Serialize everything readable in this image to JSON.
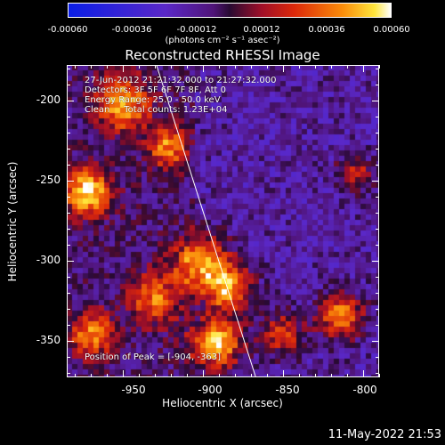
{
  "colorbar": {
    "ticks": [
      "-0.00060",
      "-0.00036",
      "-0.00012",
      "0.00012",
      "0.00036",
      "0.00060"
    ],
    "units": "(photons cm⁻² s⁻¹ asec⁻²)"
  },
  "title": "Reconstructed RHESSI Image",
  "annotation": {
    "time_range": "27-Jun-2012 21:21:32.000 to 21:27:32.000",
    "detectors": "Detectors: 3F 5F 6F 7F 8F, Att 0",
    "energy": "Energy Range: 25.0 - 50.0 keV",
    "method": "Clean     Total counts: 1.23E+04",
    "peak": "Position of Peak = [-904, -363]"
  },
  "axes": {
    "xlabel": "Heliocentric X (arcsec)",
    "ylabel": "Heliocentric Y (arcsec)",
    "xticks": [
      "-950",
      "-900",
      "-850",
      "-800"
    ],
    "yticks": [
      "-200",
      "-250",
      "-300",
      "-350"
    ],
    "xrange": [
      -985,
      -790
    ],
    "yrange": [
      -373,
      -178
    ]
  },
  "limb_line": {
    "x_top": -929,
    "x_bottom": -867
  },
  "timestamp": "11-May-2022 21:53",
  "colors": {
    "background": "#000000",
    "text": "#ffffff"
  }
}
